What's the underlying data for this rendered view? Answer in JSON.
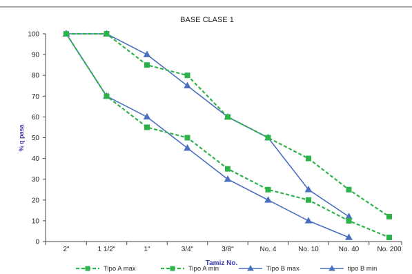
{
  "chart_data": {
    "type": "line",
    "title": "BASE CLASE 1",
    "xlabel": "Tamiz No.",
    "ylabel": "% q pasa",
    "categories": [
      "2\"",
      "1 1/2\"",
      "1\"",
      "3/4\"",
      "3/8\"",
      "No. 4",
      "No. 10",
      "No. 40",
      "No. 200"
    ],
    "ylim": [
      0,
      100
    ],
    "yticks": [
      0,
      10,
      20,
      30,
      40,
      50,
      60,
      70,
      80,
      90,
      100
    ],
    "grid": false,
    "legend_position": "bottom",
    "series": [
      {
        "name": "Tipo A max",
        "color": "#2db34a",
        "line_style": "dashed",
        "marker": "square",
        "values": [
          100,
          100,
          85,
          80,
          60,
          50,
          40,
          25,
          12
        ]
      },
      {
        "name": "Tipo A min",
        "color": "#2db34a",
        "line_style": "dashed",
        "marker": "square",
        "values": [
          100,
          70,
          55,
          50,
          35,
          25,
          20,
          10,
          2
        ]
      },
      {
        "name": "Tipo B max",
        "color": "#4a6fbf",
        "line_style": "solid",
        "marker": "triangle",
        "values": [
          100,
          100,
          90,
          75,
          60,
          50,
          25,
          12,
          null
        ]
      },
      {
        "name": "tipo B min",
        "color": "#4a6fbf",
        "line_style": "solid",
        "marker": "triangle",
        "values": [
          100,
          70,
          60,
          45,
          30,
          20,
          10,
          2,
          null
        ]
      }
    ]
  }
}
